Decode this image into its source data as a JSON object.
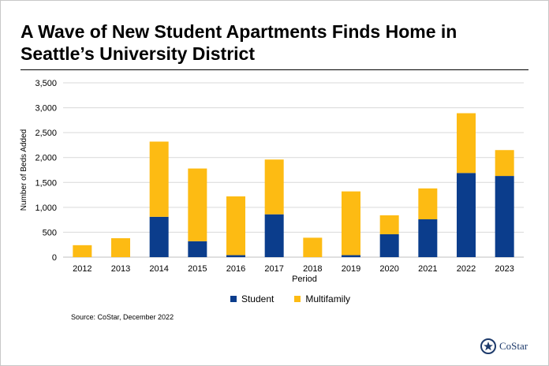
{
  "header": {
    "title": "A Wave of New Student Apartments Finds Home in\nSeattle’s University District"
  },
  "source": "Source: CoStar, December 2022",
  "logo": {
    "text": "CoStar",
    "icon": "costar-star-icon"
  },
  "colors": {
    "student": "#0b3d8c",
    "multifamily": "#fdbb13",
    "grid": "#d9d9d9"
  },
  "chart_data": {
    "type": "bar",
    "stacked": true,
    "categories": [
      "2012",
      "2013",
      "2014",
      "2015",
      "2016",
      "2017",
      "2018",
      "2019",
      "2020",
      "2021",
      "2022",
      "2023"
    ],
    "series": [
      {
        "name": "Student",
        "values": [
          0,
          0,
          810,
          320,
          40,
          860,
          0,
          40,
          460,
          760,
          1690,
          1630
        ]
      },
      {
        "name": "Multifamily",
        "values": [
          240,
          380,
          1510,
          1460,
          1180,
          1100,
          390,
          1280,
          380,
          620,
          1200,
          520
        ]
      }
    ],
    "xlabel": "Period",
    "ylabel": "Number of Beds Added",
    "ylim": [
      0,
      3500
    ],
    "yticks": [
      "0",
      "500",
      "1,000",
      "1,500",
      "2,000",
      "2,500",
      "3,000",
      "3,500"
    ],
    "grid": true,
    "legend": "bottom"
  }
}
